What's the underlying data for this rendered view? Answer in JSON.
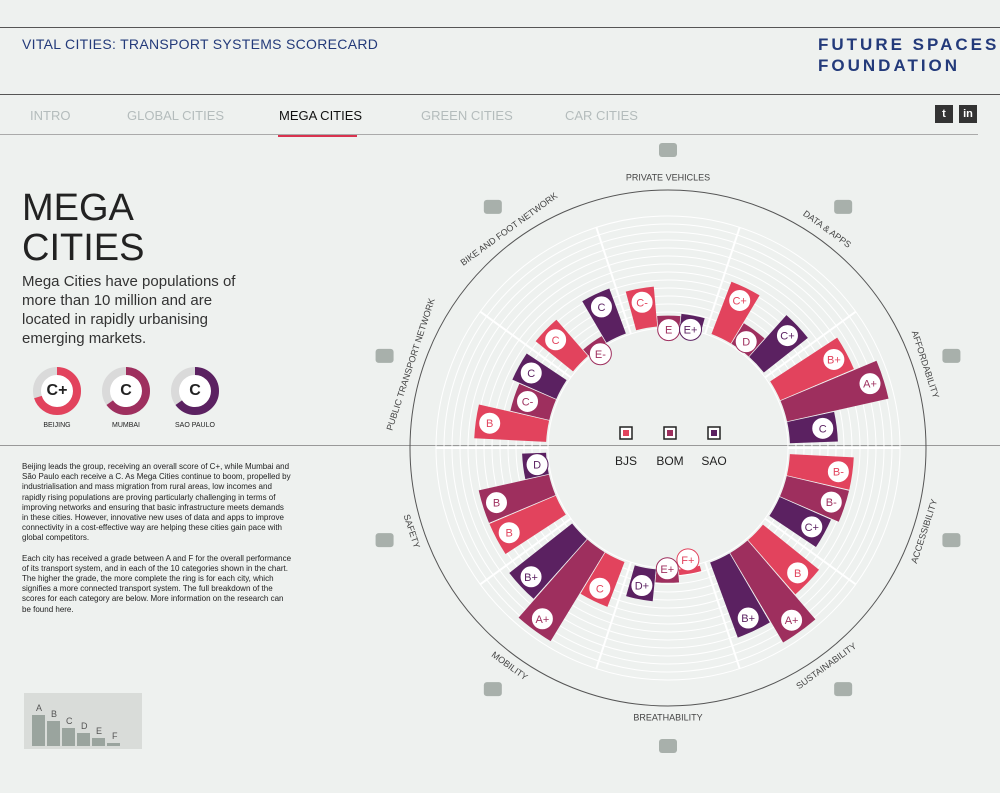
{
  "header": {
    "app_title": "VITAL CITIES: TRANSPORT SYSTEMS SCORECARD",
    "brand_line1": "FUTURE SPACES",
    "brand_line2": "FOUNDATION"
  },
  "nav": {
    "tabs": [
      {
        "label": "INTRO",
        "active": false
      },
      {
        "label": "GLOBAL CITIES",
        "active": false
      },
      {
        "label": "MEGA CITIES",
        "active": true
      },
      {
        "label": "GREEN CITIES",
        "active": false
      },
      {
        "label": "CAR CITIES",
        "active": false
      }
    ],
    "social": {
      "twitter": "t",
      "linkedin": "in"
    }
  },
  "page": {
    "title_line1": "MEGA",
    "title_line2": "CITIES",
    "intro": "Mega Cities have populations of more than 10 million and are located in rapidly urbanising emerging markets.",
    "overall": [
      {
        "city": "BEIJING",
        "grade": "C+",
        "fraction": 0.7,
        "color": "#e2435d"
      },
      {
        "city": "MUMBAI",
        "grade": "C",
        "fraction": 0.65,
        "color": "#9e2f5e"
      },
      {
        "city": "SAO PAULO",
        "grade": "C",
        "fraction": 0.65,
        "color": "#5b2161"
      }
    ],
    "body_p1": "Beijing leads the group, receiving an overall score of C+, while Mumbai and São Paulo each receive a C. As Mega Cities continue to boom, propelled by industrialisation and mass migration from rural areas, low incomes and rapidly rising populations are proving particularly challenging in terms of improving networks and ensuring that basic infrastructure meets demands in these cities. However, innovative new uses of data and apps to improve connectivity in a cost-effective way are helping these cities gain pace with global competitors.",
    "body_p2": "Each city has received a grade between A and F for the overall performance of its transport system, and in each of the 10 categories shown in the chart. The higher the grade, the more complete the ring is for each city, which signifies a more connected transport system. The full breakdown of the scores for each category are below. More information on the research can be found here.",
    "scale_labels": [
      "A",
      "B",
      "C",
      "D",
      "E",
      "F"
    ]
  },
  "colors": {
    "BJS": "#e2435d",
    "BOM": "#9e2f5e",
    "SAO": "#5b2161",
    "accent": "#d9334f",
    "ring": "#ffffff"
  },
  "chart_data": {
    "type": "radial-bar",
    "legend": [
      "BJS",
      "BOM",
      "SAO"
    ],
    "categories": [
      "PRIVATE VEHICLES",
      "DATA & APPS",
      "AFFORDABILITY",
      "ACCESSIBILITY",
      "SUSTAINABILITY",
      "BREATHABILITY",
      "MOBILITY",
      "SAFETY",
      "PUBLIC TRANSPORT NETWORK",
      "BIKE AND FOOT NETWORK"
    ],
    "icons": [
      "car-icon",
      "monitor-icon",
      "purse-icon",
      "elderly-person-icon",
      "wind-turbine-icon",
      "factory-icon",
      "pedestrian-icon",
      "warning-icon",
      "bus-icon",
      "cyclist-icon"
    ],
    "series": [
      {
        "name": "BJS",
        "grades": [
          "C-",
          "C+",
          "B+",
          "B-",
          "B",
          "F+",
          "C",
          "B",
          "B",
          "C"
        ]
      },
      {
        "name": "BOM",
        "grades": [
          "E",
          "D",
          "A+",
          "B-",
          "A+",
          "E+",
          "A+",
          "B",
          "C-",
          "E-"
        ]
      },
      {
        "name": "SAO",
        "grades": [
          "E+",
          "C+",
          "C",
          "C+",
          "B+",
          "D+",
          "B+",
          "D",
          "C",
          "C"
        ]
      }
    ]
  }
}
